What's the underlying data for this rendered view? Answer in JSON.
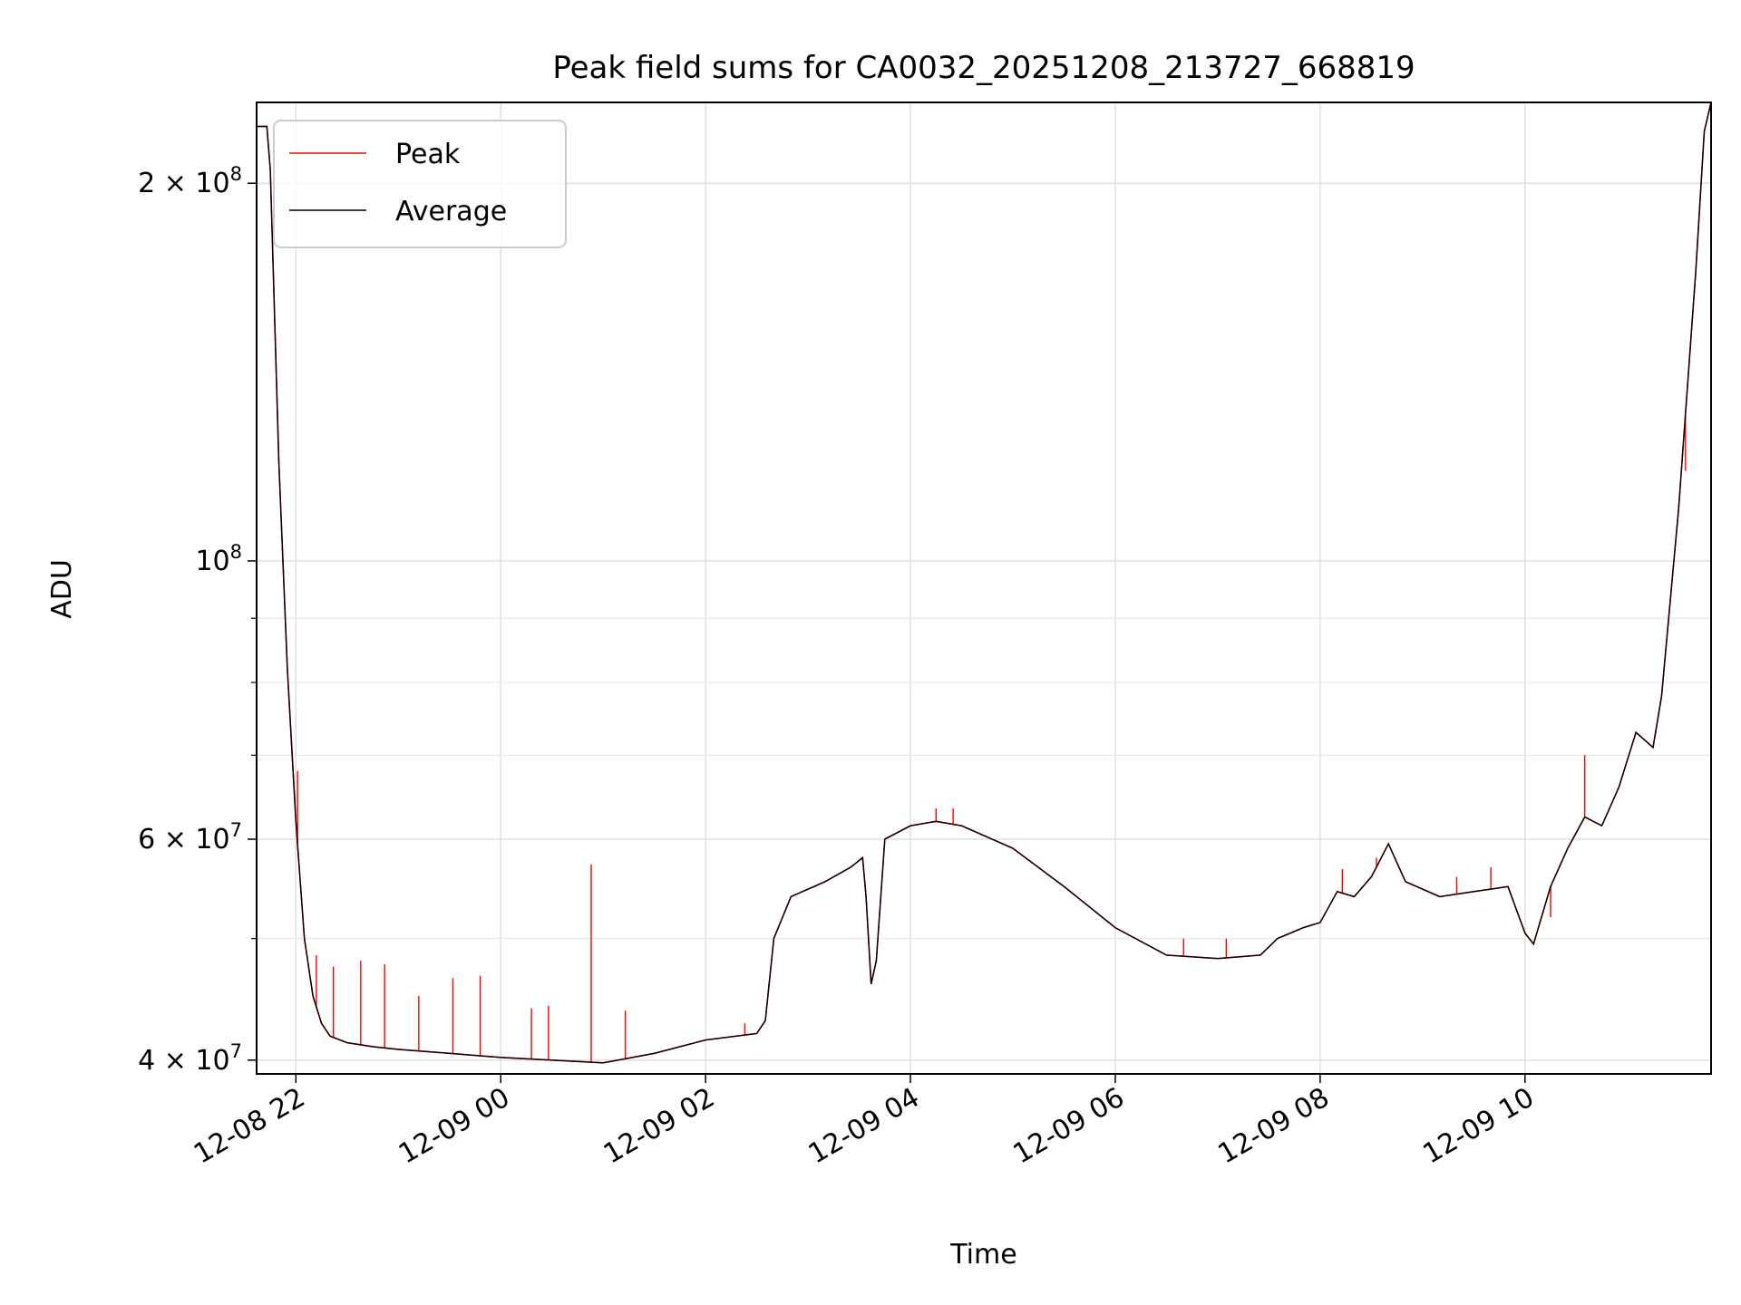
{
  "chart_data": {
    "type": "line",
    "title": "Peak field sums for CA0032_20251208_213727_668819",
    "xlabel": "Time",
    "ylabel": "ADU",
    "yscale": "log",
    "ylim": [
      39000000,
      232000000
    ],
    "xlim": [
      "2025-12-08 21:37",
      "2025-12-09 11:49"
    ],
    "grid": true,
    "legend_position": "top-left",
    "x_ticks": [
      {
        "t": "2025-12-08 22:00",
        "label": "12-08 22"
      },
      {
        "t": "2025-12-09 00:00",
        "label": "12-09 00"
      },
      {
        "t": "2025-12-09 02:00",
        "label": "12-09 02"
      },
      {
        "t": "2025-12-09 04:00",
        "label": "12-09 04"
      },
      {
        "t": "2025-12-09 06:00",
        "label": "12-09 06"
      },
      {
        "t": "2025-12-09 08:00",
        "label": "12-09 08"
      },
      {
        "t": "2025-12-09 10:00",
        "label": "12-09 10"
      }
    ],
    "y_ticks": [
      {
        "v": 40000000,
        "mant": "4",
        "exp": "7"
      },
      {
        "v": 60000000,
        "mant": "6",
        "exp": "7"
      },
      {
        "v": 100000000,
        "mant": "",
        "exp": "8"
      },
      {
        "v": 200000000,
        "mant": "2",
        "exp": "8"
      }
    ],
    "y_minor_ticks": [
      50000000,
      70000000,
      80000000,
      90000000
    ],
    "series": [
      {
        "name": "Peak",
        "color": "#ff0000",
        "points": [
          [
            "2025-12-08 21:37",
            222000000
          ],
          [
            "2025-12-08 21:43",
            222000000
          ],
          [
            "2025-12-08 21:45",
            205000000
          ],
          [
            "2025-12-08 21:50",
            120000000
          ],
          [
            "2025-12-08 21:55",
            82000000
          ],
          [
            "2025-12-08 22:00",
            62000000
          ],
          [
            "2025-12-08 22:05",
            50000000
          ],
          [
            "2025-12-08 22:10",
            45000000
          ],
          [
            "2025-12-08 22:15",
            42800000
          ],
          [
            "2025-12-08 22:20",
            41800000
          ],
          [
            "2025-12-08 22:30",
            41300000
          ],
          [
            "2025-12-08 22:45",
            41000000
          ],
          [
            "2025-12-08 23:00",
            40800000
          ],
          [
            "2025-12-08 23:30",
            40500000
          ],
          [
            "2025-12-09 00:00",
            40200000
          ],
          [
            "2025-12-09 00:30",
            40000000
          ],
          [
            "2025-12-09 01:00",
            39800000
          ],
          [
            "2025-12-09 01:30",
            40500000
          ],
          [
            "2025-12-09 02:00",
            41500000
          ],
          [
            "2025-12-09 02:30",
            42000000
          ],
          [
            "2025-12-09 02:35",
            43000000
          ],
          [
            "2025-12-09 02:40",
            50000000
          ],
          [
            "2025-12-09 02:50",
            54000000
          ],
          [
            "2025-12-09 03:10",
            55500000
          ],
          [
            "2025-12-09 03:25",
            57000000
          ],
          [
            "2025-12-09 03:32",
            58000000
          ],
          [
            "2025-12-09 03:34",
            54000000
          ],
          [
            "2025-12-09 03:37",
            46000000
          ],
          [
            "2025-12-09 03:40",
            48000000
          ],
          [
            "2025-12-09 03:45",
            60000000
          ],
          [
            "2025-12-09 04:00",
            61500000
          ],
          [
            "2025-12-09 04:15",
            62000000
          ],
          [
            "2025-12-09 04:30",
            61500000
          ],
          [
            "2025-12-09 05:00",
            59000000
          ],
          [
            "2025-12-09 05:30",
            55000000
          ],
          [
            "2025-12-09 06:00",
            51000000
          ],
          [
            "2025-12-09 06:30",
            48500000
          ],
          [
            "2025-12-09 07:00",
            48200000
          ],
          [
            "2025-12-09 07:25",
            48500000
          ],
          [
            "2025-12-09 07:35",
            50000000
          ],
          [
            "2025-12-09 07:50",
            51000000
          ],
          [
            "2025-12-09 08:00",
            51500000
          ],
          [
            "2025-12-09 08:10",
            54500000
          ],
          [
            "2025-12-09 08:20",
            54000000
          ],
          [
            "2025-12-09 08:30",
            56000000
          ],
          [
            "2025-12-09 08:40",
            59500000
          ],
          [
            "2025-12-09 08:50",
            55500000
          ],
          [
            "2025-12-09 09:10",
            54000000
          ],
          [
            "2025-12-09 09:30",
            54500000
          ],
          [
            "2025-12-09 09:50",
            55000000
          ],
          [
            "2025-12-09 10:00",
            50500000
          ],
          [
            "2025-12-09 10:05",
            49500000
          ],
          [
            "2025-12-09 10:15",
            55000000
          ],
          [
            "2025-12-09 10:25",
            59000000
          ],
          [
            "2025-12-09 10:35",
            62500000
          ],
          [
            "2025-12-09 10:45",
            61500000
          ],
          [
            "2025-12-09 10:55",
            66000000
          ],
          [
            "2025-12-09 11:05",
            73000000
          ],
          [
            "2025-12-09 11:15",
            71000000
          ],
          [
            "2025-12-09 11:20",
            78000000
          ],
          [
            "2025-12-09 11:30",
            110000000
          ],
          [
            "2025-12-09 11:40",
            170000000
          ],
          [
            "2025-12-09 11:45",
            220000000
          ],
          [
            "2025-12-09 11:49",
            232000000
          ]
        ]
      },
      {
        "name": "Average",
        "color": "#000000",
        "points": [
          [
            "2025-12-08 21:37",
            222000000
          ],
          [
            "2025-12-08 21:43",
            222000000
          ],
          [
            "2025-12-08 21:45",
            205000000
          ],
          [
            "2025-12-08 21:50",
            120000000
          ],
          [
            "2025-12-08 21:55",
            82000000
          ],
          [
            "2025-12-08 22:00",
            62000000
          ],
          [
            "2025-12-08 22:05",
            50000000
          ],
          [
            "2025-12-08 22:10",
            45000000
          ],
          [
            "2025-12-08 22:15",
            42800000
          ],
          [
            "2025-12-08 22:20",
            41800000
          ],
          [
            "2025-12-08 22:30",
            41300000
          ],
          [
            "2025-12-08 22:45",
            41000000
          ],
          [
            "2025-12-08 23:00",
            40800000
          ],
          [
            "2025-12-08 23:30",
            40500000
          ],
          [
            "2025-12-09 00:00",
            40200000
          ],
          [
            "2025-12-09 00:30",
            40000000
          ],
          [
            "2025-12-09 01:00",
            39800000
          ],
          [
            "2025-12-09 01:30",
            40500000
          ],
          [
            "2025-12-09 02:00",
            41500000
          ],
          [
            "2025-12-09 02:30",
            42000000
          ],
          [
            "2025-12-09 02:35",
            43000000
          ],
          [
            "2025-12-09 02:40",
            50000000
          ],
          [
            "2025-12-09 02:50",
            54000000
          ],
          [
            "2025-12-09 03:10",
            55500000
          ],
          [
            "2025-12-09 03:25",
            57000000
          ],
          [
            "2025-12-09 03:32",
            58000000
          ],
          [
            "2025-12-09 03:34",
            54000000
          ],
          [
            "2025-12-09 03:37",
            46000000
          ],
          [
            "2025-12-09 03:40",
            48000000
          ],
          [
            "2025-12-09 03:45",
            60000000
          ],
          [
            "2025-12-09 04:00",
            61500000
          ],
          [
            "2025-12-09 04:15",
            62000000
          ],
          [
            "2025-12-09 04:30",
            61500000
          ],
          [
            "2025-12-09 05:00",
            59000000
          ],
          [
            "2025-12-09 05:30",
            55000000
          ],
          [
            "2025-12-09 06:00",
            51000000
          ],
          [
            "2025-12-09 06:30",
            48500000
          ],
          [
            "2025-12-09 07:00",
            48200000
          ],
          [
            "2025-12-09 07:25",
            48500000
          ],
          [
            "2025-12-09 07:35",
            50000000
          ],
          [
            "2025-12-09 07:50",
            51000000
          ],
          [
            "2025-12-09 08:00",
            51500000
          ],
          [
            "2025-12-09 08:10",
            54500000
          ],
          [
            "2025-12-09 08:20",
            54000000
          ],
          [
            "2025-12-09 08:30",
            56000000
          ],
          [
            "2025-12-09 08:40",
            59500000
          ],
          [
            "2025-12-09 08:50",
            55500000
          ],
          [
            "2025-12-09 09:10",
            54000000
          ],
          [
            "2025-12-09 09:30",
            54500000
          ],
          [
            "2025-12-09 09:50",
            55000000
          ],
          [
            "2025-12-09 10:00",
            50500000
          ],
          [
            "2025-12-09 10:05",
            49500000
          ],
          [
            "2025-12-09 10:15",
            55000000
          ],
          [
            "2025-12-09 10:25",
            59000000
          ],
          [
            "2025-12-09 10:35",
            62500000
          ],
          [
            "2025-12-09 10:45",
            61500000
          ],
          [
            "2025-12-09 10:55",
            66000000
          ],
          [
            "2025-12-09 11:05",
            73000000
          ],
          [
            "2025-12-09 11:15",
            71000000
          ],
          [
            "2025-12-09 11:20",
            78000000
          ],
          [
            "2025-12-09 11:30",
            110000000
          ],
          [
            "2025-12-09 11:40",
            170000000
          ],
          [
            "2025-12-09 11:45",
            220000000
          ],
          [
            "2025-12-09 11:49",
            232000000
          ]
        ]
      }
    ],
    "peak_spikes": [
      [
        "2025-12-08 22:01",
        68000000
      ],
      [
        "2025-12-08 22:12",
        48500000
      ],
      [
        "2025-12-08 22:22",
        47500000
      ],
      [
        "2025-12-08 22:38",
        48000000
      ],
      [
        "2025-12-08 22:52",
        47700000
      ],
      [
        "2025-12-08 23:12",
        45000000
      ],
      [
        "2025-12-08 23:32",
        46500000
      ],
      [
        "2025-12-08 23:48",
        46700000
      ],
      [
        "2025-12-09 00:18",
        44000000
      ],
      [
        "2025-12-09 00:28",
        44200000
      ],
      [
        "2025-12-09 00:53",
        57300000
      ],
      [
        "2025-12-09 01:13",
        43800000
      ],
      [
        "2025-12-09 02:23",
        42800000
      ],
      [
        "2025-12-09 02:37",
        46000000
      ],
      [
        "2025-12-09 04:15",
        63500000
      ],
      [
        "2025-12-09 04:25",
        63500000
      ],
      [
        "2025-12-09 06:40",
        50000000
      ],
      [
        "2025-12-09 07:05",
        50000000
      ],
      [
        "2025-12-09 08:13",
        56800000
      ],
      [
        "2025-12-09 08:33",
        58000000
      ],
      [
        "2025-12-09 09:20",
        56000000
      ],
      [
        "2025-12-09 09:40",
        57000000
      ],
      [
        "2025-12-09 10:15",
        52000000
      ],
      [
        "2025-12-09 10:35",
        70000000
      ],
      [
        "2025-12-09 11:34",
        118000000
      ]
    ]
  }
}
